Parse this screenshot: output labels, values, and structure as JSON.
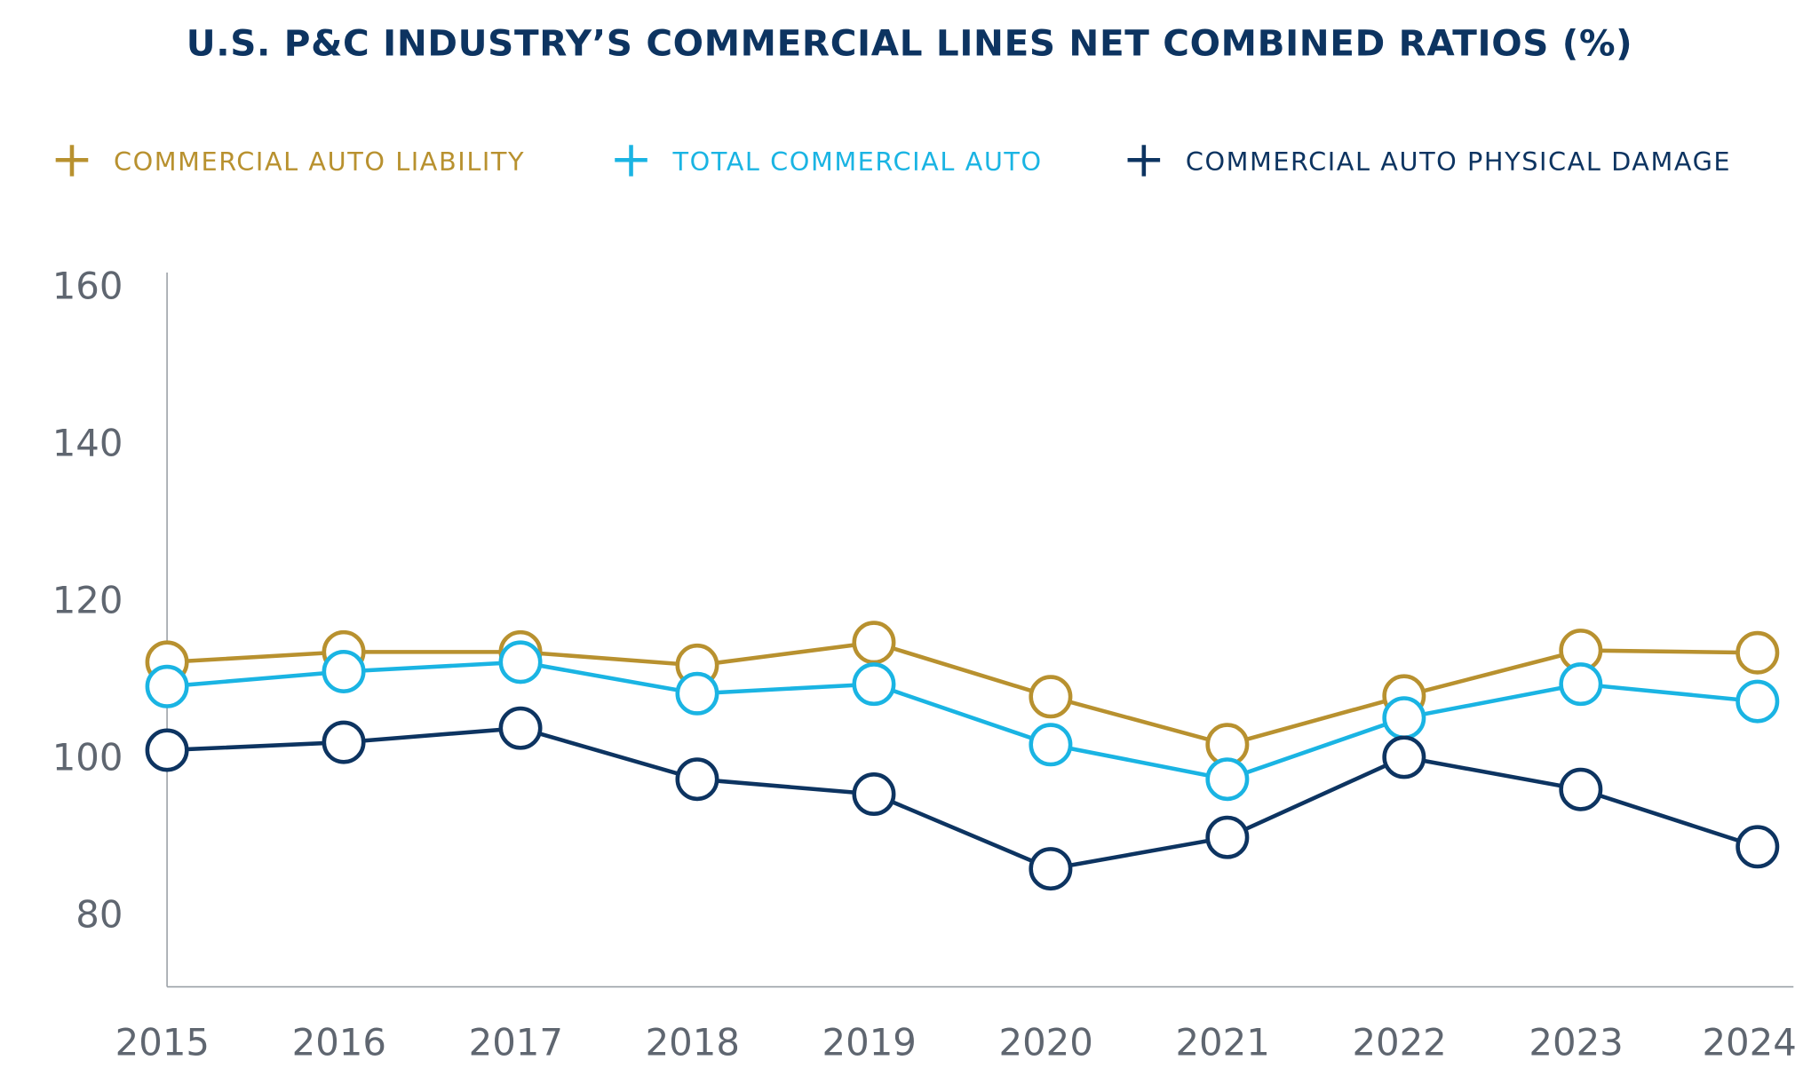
{
  "chart_data": {
    "type": "line",
    "title": "U.S. P&C INDUSTRY’S COMMERCIAL LINES NET COMBINED RATIOS (%)",
    "xlabel": "",
    "ylabel": "",
    "categories": [
      "2015",
      "2016",
      "2017",
      "2018",
      "2019",
      "2020",
      "2021",
      "2022",
      "2023",
      "2024"
    ],
    "ylim": [
      70,
      162
    ],
    "yticks": [
      80,
      100,
      120,
      140,
      160
    ],
    "grid": false,
    "legend_position": "top",
    "series": [
      {
        "name": "COMMERCIAL AUTO LIABILITY",
        "color": "#b8912f",
        "values": [
          112.1,
          113.4,
          113.4,
          111.7,
          114.6,
          107.7,
          101.6,
          107.8,
          113.6,
          113.3
        ]
      },
      {
        "name": "TOTAL COMMERCIAL AUTO",
        "color": "#1ab4e3",
        "values": [
          109.0,
          110.9,
          112.1,
          108.1,
          109.3,
          101.6,
          97.2,
          105.0,
          109.3,
          107.1
        ]
      },
      {
        "name": "COMMERCIAL AUTO PHYSICAL DAMAGE",
        "color": "#0d3461",
        "values": [
          100.9,
          101.9,
          103.7,
          97.2,
          95.3,
          85.8,
          89.8,
          100.0,
          95.9,
          88.6
        ]
      }
    ]
  }
}
